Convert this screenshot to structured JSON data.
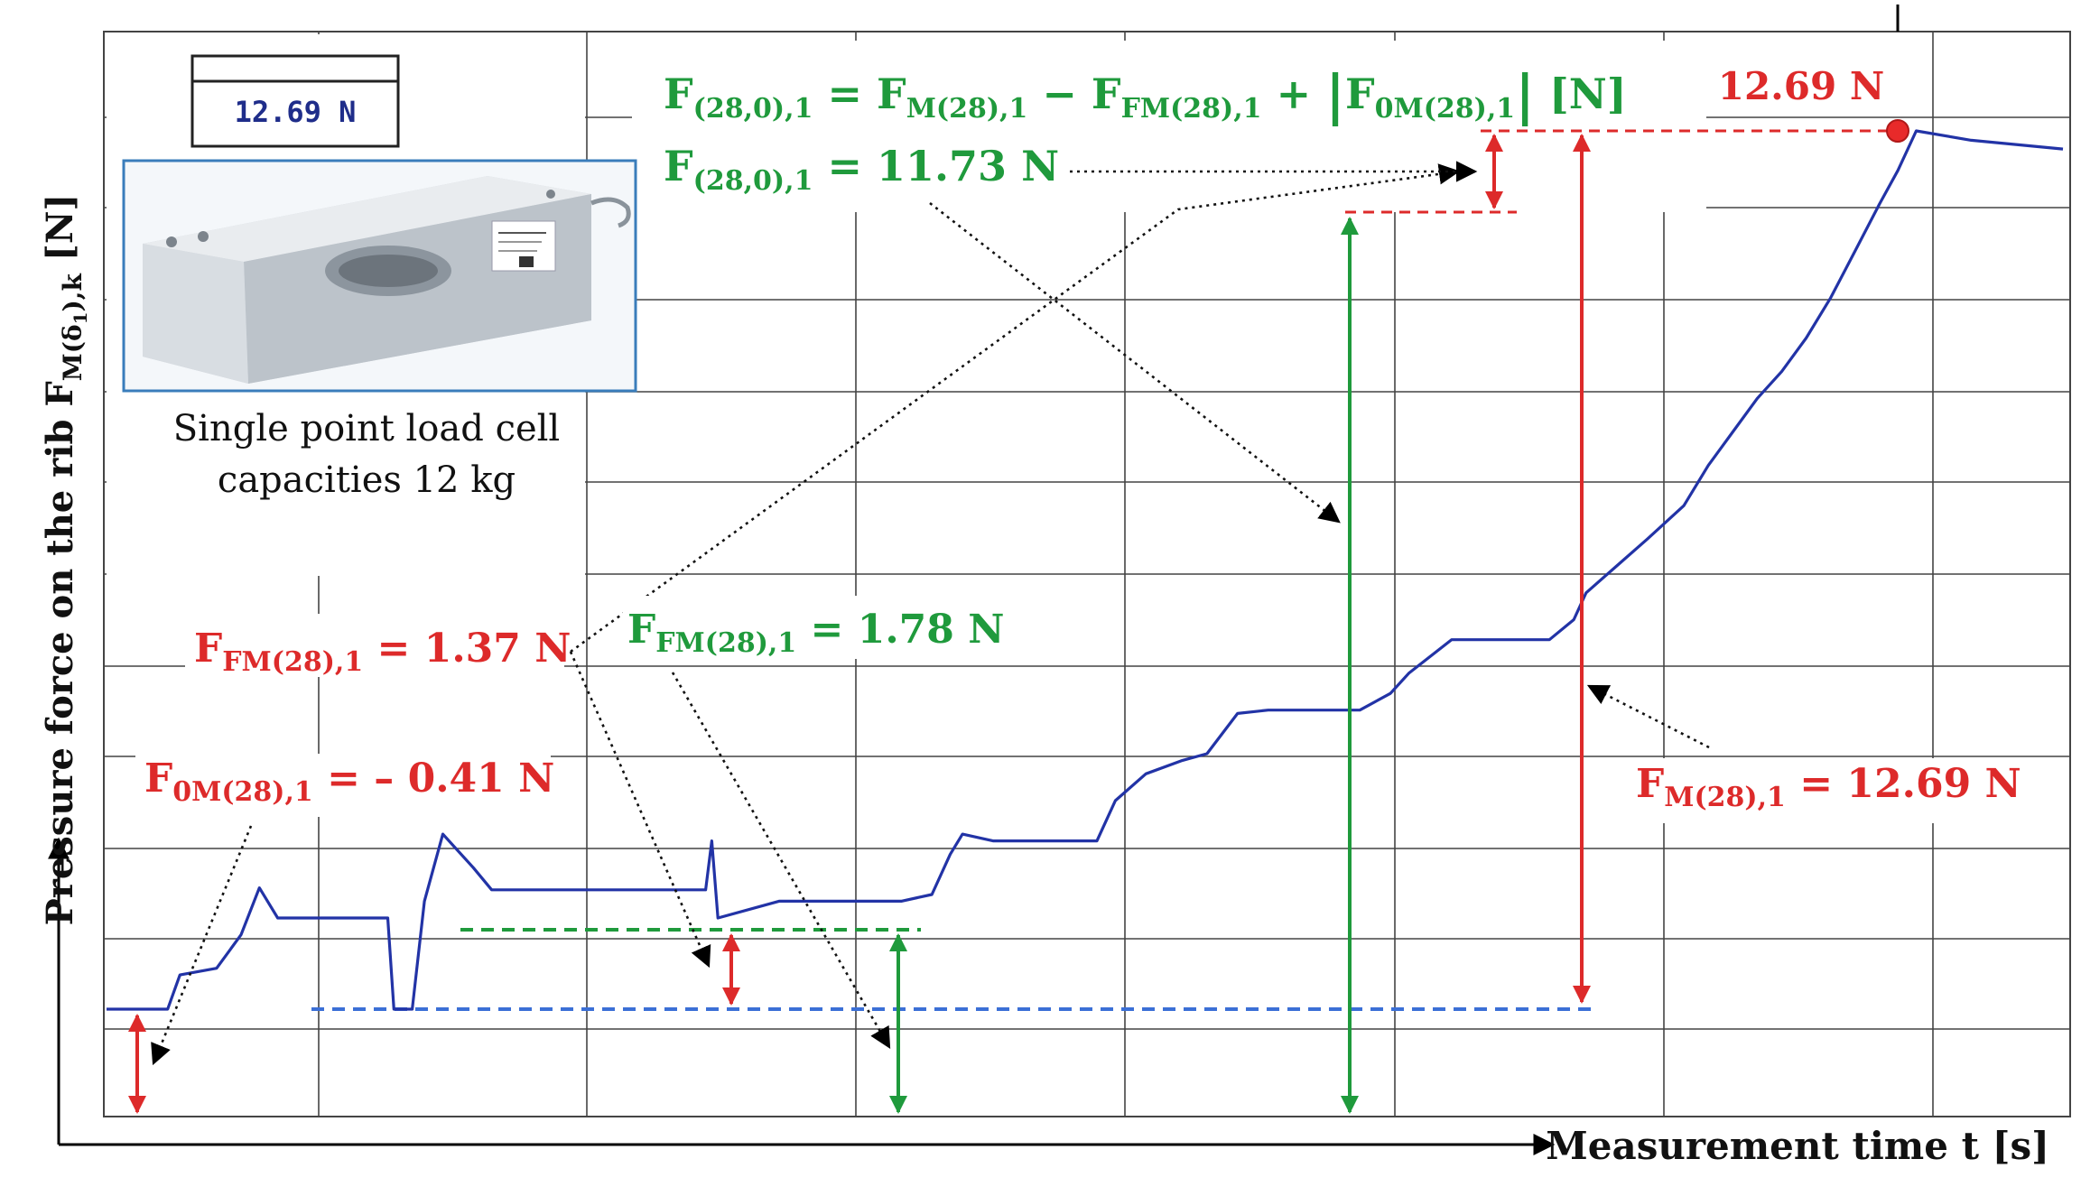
{
  "chart_data": {
    "type": "line",
    "xlabel": "Measurement time t [s]",
    "ylabel": "Pressure force on the rib F",
    "ylabel_sub": "M(δ",
    "ylabel_sub2": "1",
    "ylabel_sub3": "),k",
    "ylabel_unit": " [N]",
    "x_ticks_shown": false,
    "y_ticks_shown": false,
    "grid": true,
    "colors": {
      "signal": "#2233a6",
      "green": "#1f9a3c",
      "red": "#dd2a2a",
      "blue_dashed": "#3b6fd6",
      "grid": "#444444"
    },
    "series": [
      {
        "values": [
          [
            0.0,
            -0.41
          ],
          [
            0.1,
            -0.41
          ],
          [
            0.12,
            0.1
          ],
          [
            0.18,
            0.2
          ],
          [
            0.22,
            0.7
          ],
          [
            0.25,
            1.4
          ],
          [
            0.28,
            0.95
          ],
          [
            0.3,
            0.95
          ],
          [
            0.4,
            0.95
          ],
          [
            0.46,
            0.95
          ],
          [
            0.47,
            -0.41
          ],
          [
            0.5,
            -0.41
          ],
          [
            0.52,
            1.2
          ],
          [
            0.55,
            2.2
          ],
          [
            0.6,
            1.7
          ],
          [
            0.63,
            1.37
          ],
          [
            0.7,
            1.37
          ],
          [
            0.8,
            1.37
          ],
          [
            0.9,
            1.37
          ],
          [
            0.98,
            1.37
          ],
          [
            0.99,
            2.1
          ],
          [
            1.0,
            0.95
          ],
          [
            1.1,
            1.2
          ],
          [
            1.2,
            1.2
          ],
          [
            1.3,
            1.2
          ],
          [
            1.35,
            1.3
          ],
          [
            1.38,
            1.9
          ],
          [
            1.4,
            2.2
          ],
          [
            1.45,
            2.1
          ],
          [
            1.55,
            2.1
          ],
          [
            1.62,
            2.1
          ],
          [
            1.65,
            2.7
          ],
          [
            1.7,
            3.1
          ],
          [
            1.76,
            3.3
          ],
          [
            1.8,
            3.4
          ],
          [
            1.85,
            4.0
          ],
          [
            1.9,
            4.05
          ],
          [
            2.0,
            4.05
          ],
          [
            2.05,
            4.05
          ],
          [
            2.1,
            4.3
          ],
          [
            2.13,
            4.6
          ],
          [
            2.2,
            5.1
          ],
          [
            2.3,
            5.1
          ],
          [
            2.36,
            5.1
          ],
          [
            2.4,
            5.4
          ],
          [
            2.42,
            5.8
          ],
          [
            2.47,
            6.2
          ],
          [
            2.52,
            6.6
          ],
          [
            2.58,
            7.1
          ],
          [
            2.62,
            7.7
          ],
          [
            2.66,
            8.2
          ],
          [
            2.7,
            8.7
          ],
          [
            2.74,
            9.1
          ],
          [
            2.78,
            9.6
          ],
          [
            2.82,
            10.2
          ],
          [
            2.86,
            10.9
          ],
          [
            2.9,
            11.6
          ],
          [
            2.93,
            12.1
          ],
          [
            2.96,
            12.69
          ],
          [
            3.05,
            12.55
          ],
          [
            3.2,
            12.42
          ]
        ]
      }
    ],
    "peak_label": "12.69 N",
    "annotations": {
      "formula_main": "F(28,0),1 = FM(28),1 − FFM(28),1 + |F0M(28),1| [N]",
      "f_28_0_value": "F(28,0),1 = 11.73 N",
      "ffm_red": "FFM(28),1 = 1.37 N",
      "ffm_green": "FFM(28),1 = 1.78 N",
      "f0m": "F0M(28),1 = – 0.41 N",
      "fm": "FM(28),1 = 12.69 N"
    },
    "inset": {
      "display_value": "12.69 N",
      "caption_line1": "Single point load cell",
      "caption_line2": "capacities 12 kg"
    }
  },
  "text": {
    "formula": {
      "f1": "F",
      "s1": "(28,0),1",
      "eq": " = F",
      "s2": "M(28),1",
      "minus": " − F",
      "s3": "FM(28),1",
      "plus": " + ",
      "bar1": "|",
      "f4": "F",
      "s4": "0M(28),1",
      "bar2": "|",
      "unit": " [N]"
    },
    "f280": {
      "f": "F",
      "sub": "(28,0),1",
      "rest": " = 11.73 N"
    },
    "ffm_red": {
      "f": "F",
      "sub": "FM(28),1",
      "rest": " = 1.37 N"
    },
    "ffm_green": {
      "f": "F",
      "sub": "FM(28),1",
      "rest": " = 1.78 N"
    },
    "f0m": {
      "f": "F",
      "sub": "0M(28),1",
      "rest": " = – 0.41 N"
    },
    "fm": {
      "f": "F",
      "sub": "M(28),1",
      "rest": " = 12.69 N"
    }
  }
}
